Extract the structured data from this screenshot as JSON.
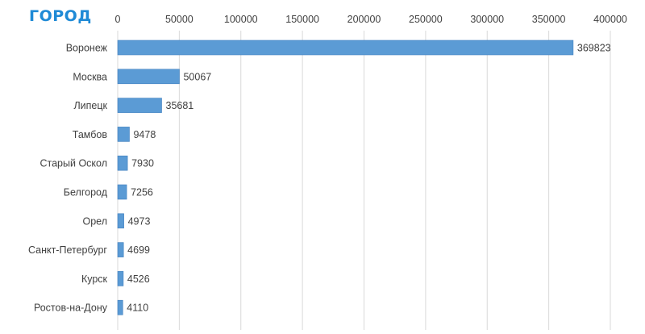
{
  "chart_data": {
    "type": "bar",
    "orientation": "horizontal",
    "title": "ГОРОД",
    "xlabel": "",
    "ylabel": "",
    "categories": [
      "Воронеж",
      "Москва",
      "Липецк",
      "Тамбов",
      "Старый Оскол",
      "Белгород",
      "Орел",
      "Санкт-Петербург",
      "Курск",
      "Ростов-на-Дону"
    ],
    "values": [
      369823,
      50067,
      35681,
      9478,
      7930,
      7256,
      4973,
      4699,
      4526,
      4110
    ],
    "xlim": [
      0,
      400000
    ],
    "x_ticks": [
      0,
      50000,
      100000,
      150000,
      200000,
      250000,
      300000,
      350000,
      400000
    ],
    "x_tick_position": "top",
    "grid": true,
    "legend": "none",
    "data_labels": true
  },
  "colors": {
    "title": "#1f8ad6",
    "bar": "#5b9bd5",
    "bar_edge": "#3f7fbf",
    "grid": "#d9d9d9",
    "text": "#404040"
  }
}
